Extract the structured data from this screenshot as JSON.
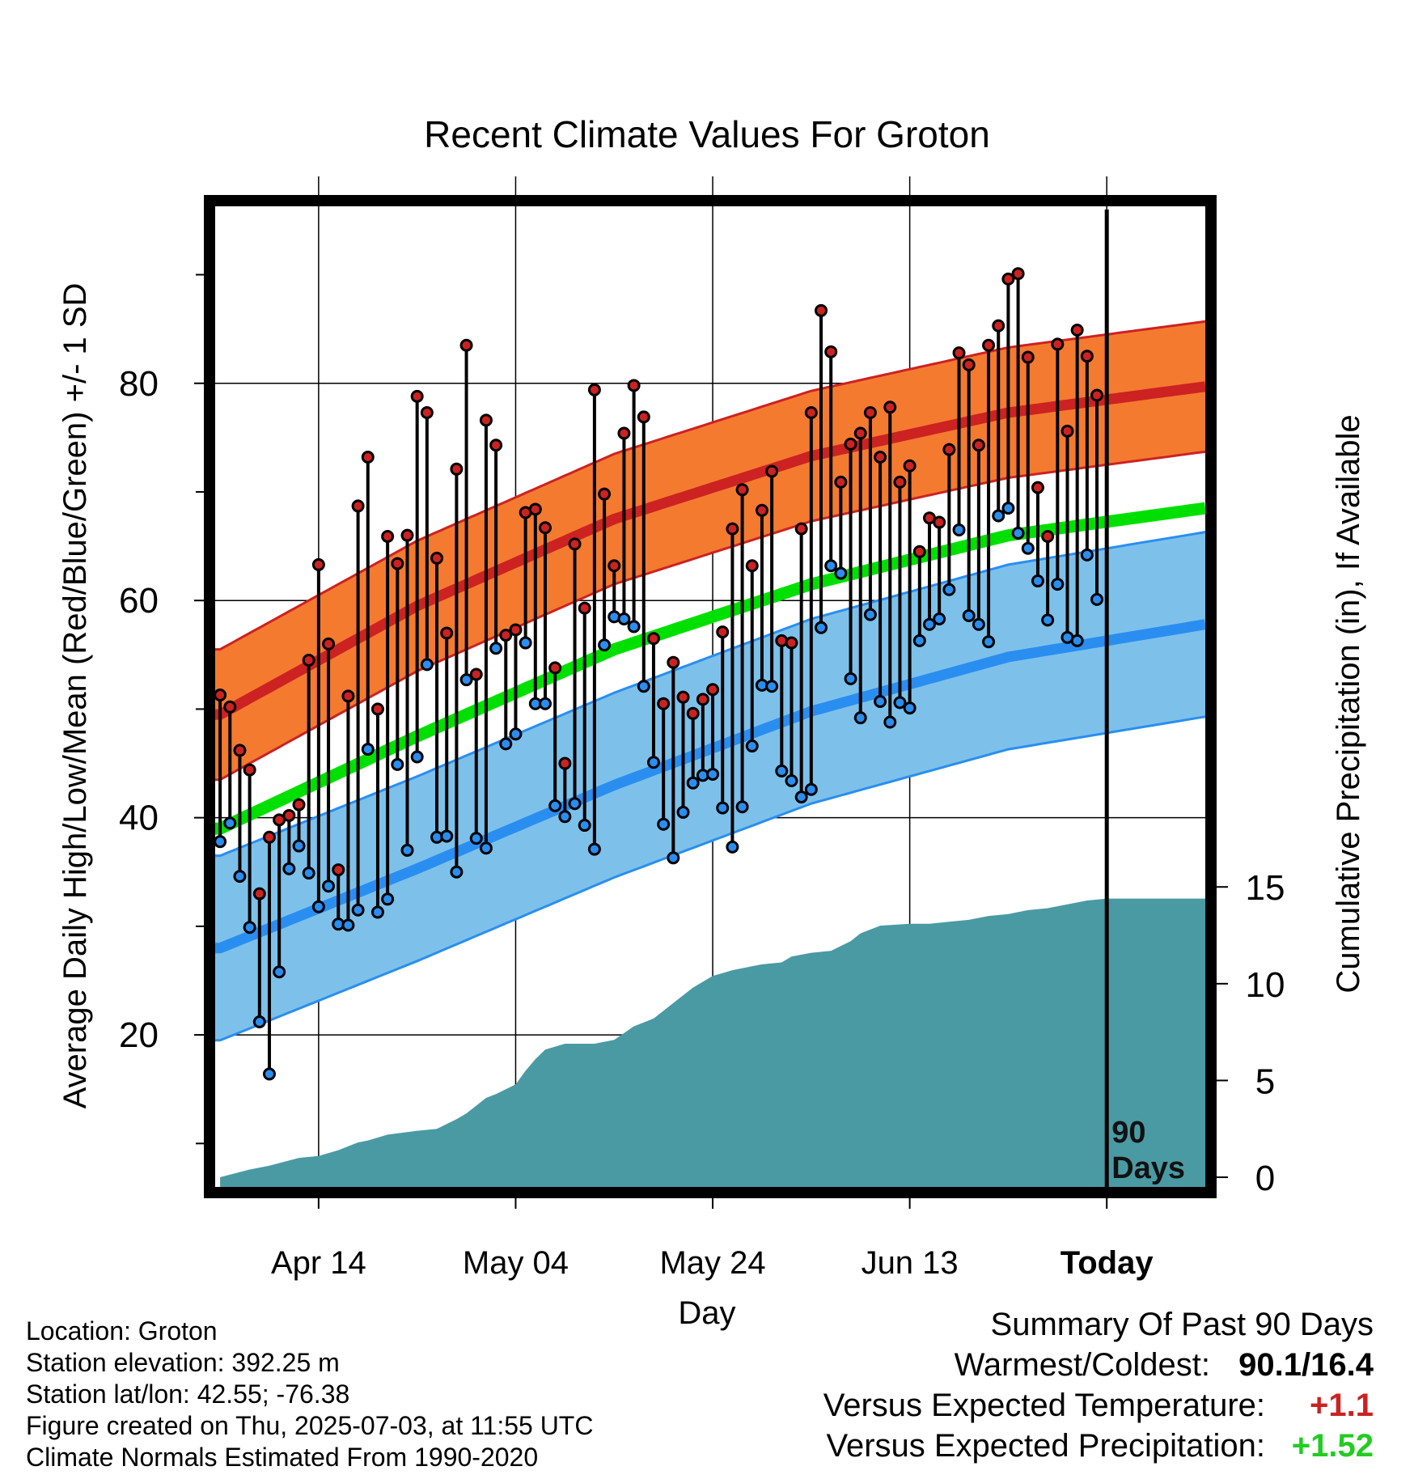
{
  "chart_data": {
    "type": "line",
    "title": "Recent Climate Values For Groton",
    "xlabel": "Day",
    "ylabel": "Average Daily High/Low/Mean (Red/Blue/Green) +/- 1 SD",
    "y2label": "Cumulative Precipitation (in), If Available",
    "xticks": [
      {
        "day": 10,
        "label": "Apr 14"
      },
      {
        "day": 30,
        "label": "May 04"
      },
      {
        "day": 50,
        "label": "May 24"
      },
      {
        "day": 70,
        "label": "Jun 13"
      },
      {
        "day": 90,
        "label": "Today"
      }
    ],
    "yticks": [
      20,
      40,
      60,
      80
    ],
    "y2ticks": [
      0,
      5,
      10,
      15
    ],
    "xlim": [
      -0.5,
      100
    ],
    "ylim": [
      6,
      96
    ],
    "y2lim": [
      -0.5,
      50
    ],
    "today_marker": "90\nDays",
    "grid": true,
    "colors": {
      "high": "#cc2222",
      "high_band": "#f47a30",
      "low": "#2a8ef0",
      "low_band": "#7dc1ea",
      "mean": "#00e000",
      "precip": "#4a9aa4"
    },
    "normal_high": {
      "days": [
        0,
        20,
        40,
        60,
        80,
        100
      ],
      "values": [
        49.5,
        59.5,
        67.5,
        73.3,
        77.3,
        79.7
      ]
    },
    "normal_high_sd": 6.0,
    "normal_low": {
      "days": [
        0,
        20,
        40,
        60,
        80,
        100
      ],
      "values": [
        28.0,
        35.3,
        43.0,
        49.8,
        54.8,
        57.8
      ]
    },
    "normal_low_sd": 8.5,
    "normal_mean": {
      "days": [
        0,
        20,
        40,
        60,
        80,
        100
      ],
      "values": [
        39.0,
        47.5,
        55.5,
        61.5,
        66.0,
        68.5
      ]
    },
    "observed_high": [
      51.3,
      50.2,
      46.2,
      44.4,
      33.0,
      38.2,
      39.8,
      40.2,
      41.2,
      54.5,
      63.3,
      56.0,
      35.2,
      51.2,
      68.7,
      73.2,
      50.0,
      65.9,
      63.4,
      66.0,
      78.8,
      77.3,
      63.9,
      57.0,
      72.1,
      83.5,
      53.2,
      76.6,
      74.3,
      56.8,
      57.3,
      68.1,
      68.4,
      66.7,
      53.8,
      45.0,
      65.2,
      59.3,
      79.4,
      69.8,
      63.2,
      75.4,
      79.8,
      76.9,
      56.5,
      50.5,
      54.3,
      51.1,
      49.6,
      50.9,
      51.8,
      57.1,
      66.6,
      70.2,
      63.2,
      68.3,
      71.9,
      56.3,
      56.1,
      66.6,
      77.3,
      86.7,
      82.9,
      70.9,
      74.4,
      75.4,
      77.3,
      73.2,
      77.8,
      70.9,
      72.4,
      64.5,
      67.6,
      67.2,
      73.9,
      82.8,
      81.7,
      74.3,
      83.5,
      85.3,
      89.6,
      90.1,
      82.4,
      70.4,
      65.9,
      83.6,
      75.6,
      84.9,
      82.5,
      78.9
    ],
    "observed_low": [
      37.8,
      39.5,
      34.6,
      29.9,
      21.2,
      16.4,
      25.8,
      35.3,
      37.4,
      34.9,
      31.8,
      33.7,
      30.2,
      30.1,
      31.5,
      46.3,
      31.3,
      32.5,
      44.9,
      37.0,
      45.6,
      54.1,
      38.2,
      38.3,
      35.0,
      52.7,
      38.1,
      37.2,
      55.6,
      46.8,
      47.7,
      56.1,
      50.5,
      50.5,
      41.1,
      40.1,
      41.3,
      39.3,
      37.1,
      55.9,
      58.5,
      58.3,
      57.6,
      52.1,
      45.1,
      39.4,
      36.3,
      40.5,
      43.2,
      43.9,
      44.0,
      40.9,
      37.3,
      41.0,
      46.6,
      52.2,
      52.1,
      44.3,
      43.4,
      41.9,
      42.6,
      57.5,
      63.2,
      62.5,
      52.8,
      49.2,
      58.7,
      50.7,
      48.8,
      50.6,
      50.1,
      56.3,
      57.8,
      58.3,
      61.0,
      66.5,
      58.6,
      57.8,
      56.2,
      67.8,
      68.5,
      66.2,
      64.8,
      61.8,
      58.2,
      61.5,
      56.6,
      56.3,
      64.2,
      60.1
    ],
    "cumulative_precip": {
      "days": [
        0,
        3,
        5,
        8,
        10,
        12,
        14,
        15,
        17,
        20,
        22,
        24,
        25,
        27,
        28,
        30,
        31,
        32,
        33,
        35,
        38,
        40,
        42,
        44,
        46,
        48,
        50,
        52,
        54,
        55,
        57,
        58,
        60,
        62,
        64,
        65,
        67,
        70,
        72,
        74,
        76,
        78,
        80,
        82,
        84,
        86,
        88,
        90,
        100
      ],
      "values": [
        0.0,
        0.4,
        0.6,
        1.0,
        1.1,
        1.4,
        1.8,
        1.9,
        2.2,
        2.4,
        2.5,
        3.0,
        3.3,
        4.1,
        4.3,
        4.8,
        5.5,
        6.1,
        6.6,
        6.9,
        6.9,
        7.1,
        7.8,
        8.2,
        9.0,
        9.8,
        10.4,
        10.7,
        10.9,
        11.0,
        11.1,
        11.4,
        11.6,
        11.7,
        12.2,
        12.6,
        13.0,
        13.1,
        13.1,
        13.2,
        13.3,
        13.5,
        13.6,
        13.8,
        13.9,
        14.1,
        14.3,
        14.4,
        14.4
      ]
    }
  },
  "info": {
    "location": "Location: Groton",
    "elevation": "Station elevation: 392.25 m",
    "latlon": "Station lat/lon: 42.55; -76.38",
    "created": "Figure created on Thu, 2025-07-03, at 11:55 UTC",
    "normals": "Climate Normals Estimated From 1990-2020"
  },
  "summary": {
    "title": "Summary Of Past 90 Days",
    "warmest_label": "Warmest/Coldest:",
    "warmest_value": "90.1/16.4",
    "temp_label": "Versus Expected Temperature:",
    "temp_value": "+1.1",
    "temp_color": "#cc2222",
    "precip_label": "Versus Expected Precipitation:",
    "precip_value": "+1.52",
    "precip_color": "#22cc22"
  }
}
